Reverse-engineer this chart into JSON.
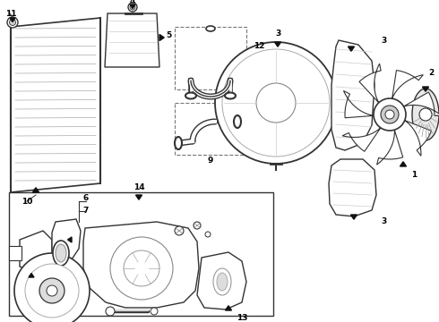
{
  "background_color": "#ffffff",
  "line_color": "#333333",
  "part_color": "#444444",
  "arrow_color": "#111111",
  "fig_width": 4.9,
  "fig_height": 3.6,
  "dpi": 100
}
